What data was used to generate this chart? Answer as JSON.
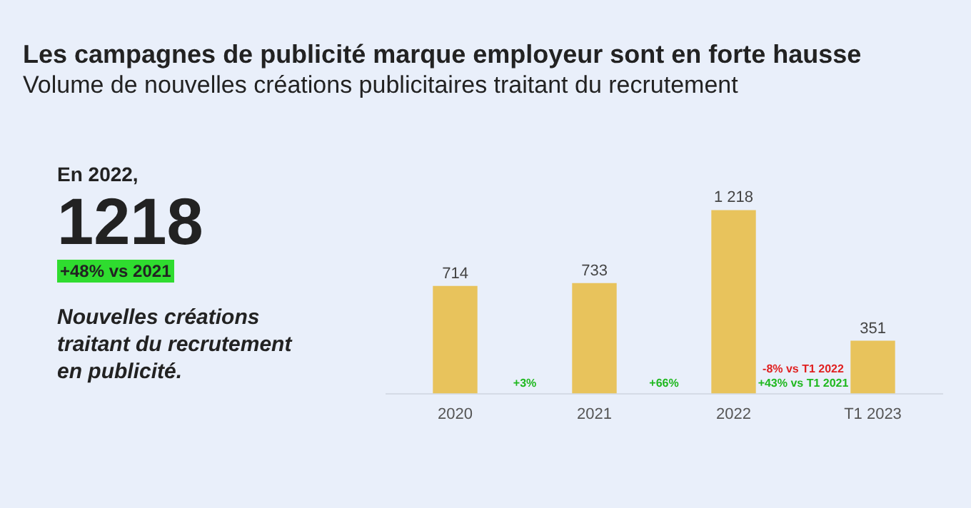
{
  "chart_data": {
    "type": "bar",
    "title": "Les campagnes de publicité marque employeur sont en forte hausse",
    "subtitle": "Volume de nouvelles créations publicitaires traitant du recrutement",
    "categories": [
      "2020",
      "2021",
      "2022",
      "T1 2023"
    ],
    "values": [
      714,
      733,
      1218,
      351
    ],
    "color": "#e8c35c",
    "value_labels": [
      "714",
      "733",
      "1 218",
      "351"
    ],
    "annotations": [
      "En 2022,",
      "1218",
      "+48% vs 2021",
      "Nouvelles créations traitant du recrutement en publicité.",
      "+3%",
      "+66%",
      "-8% vs T1 2022",
      "+43% vs T1 2021"
    ],
    "grid": false,
    "legend": false
  }
}
